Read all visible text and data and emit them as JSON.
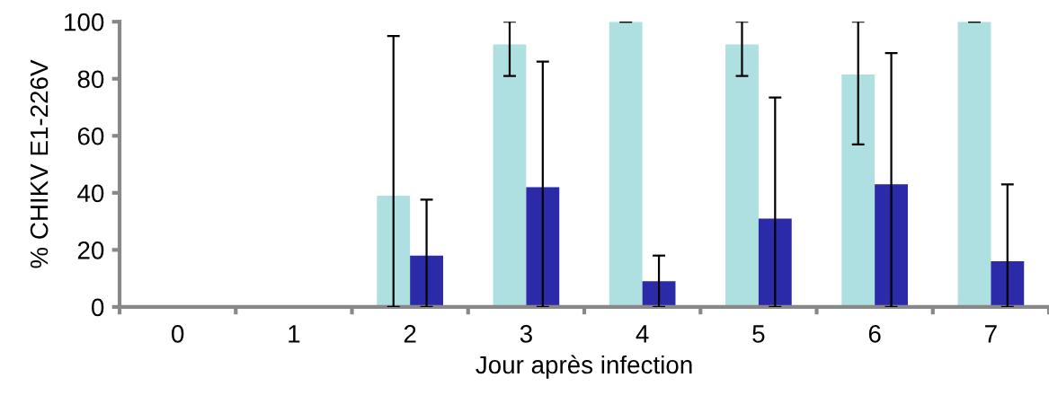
{
  "chart_data": {
    "type": "bar",
    "xlabel": "Jour après infection",
    "ylabel": "% CHIKV E1-226V",
    "categories": [
      "0",
      "1",
      "2",
      "3",
      "4",
      "5",
      "6",
      "7"
    ],
    "series": [
      {
        "color": "#aee0e2",
        "values": [
          0,
          0,
          39,
          92,
          100,
          92,
          81.5,
          100
        ],
        "errors": [
          null,
          null,
          [
            0,
            95
          ],
          [
            81,
            100
          ],
          [
            100,
            100
          ],
          [
            81,
            100
          ],
          [
            57,
            100
          ],
          [
            100,
            100
          ]
        ]
      },
      {
        "color": "#2b2baa",
        "values": [
          0,
          0,
          18,
          42,
          9,
          31,
          43,
          16
        ],
        "errors": [
          null,
          null,
          [
            0,
            37.6
          ],
          [
            0,
            86
          ],
          [
            0,
            18
          ],
          [
            0,
            73.4
          ],
          [
            0,
            89
          ],
          [
            0,
            43
          ]
        ]
      }
    ],
    "ylim": [
      0,
      100
    ],
    "yticks": [
      0,
      20,
      40,
      60,
      80,
      100
    ]
  }
}
